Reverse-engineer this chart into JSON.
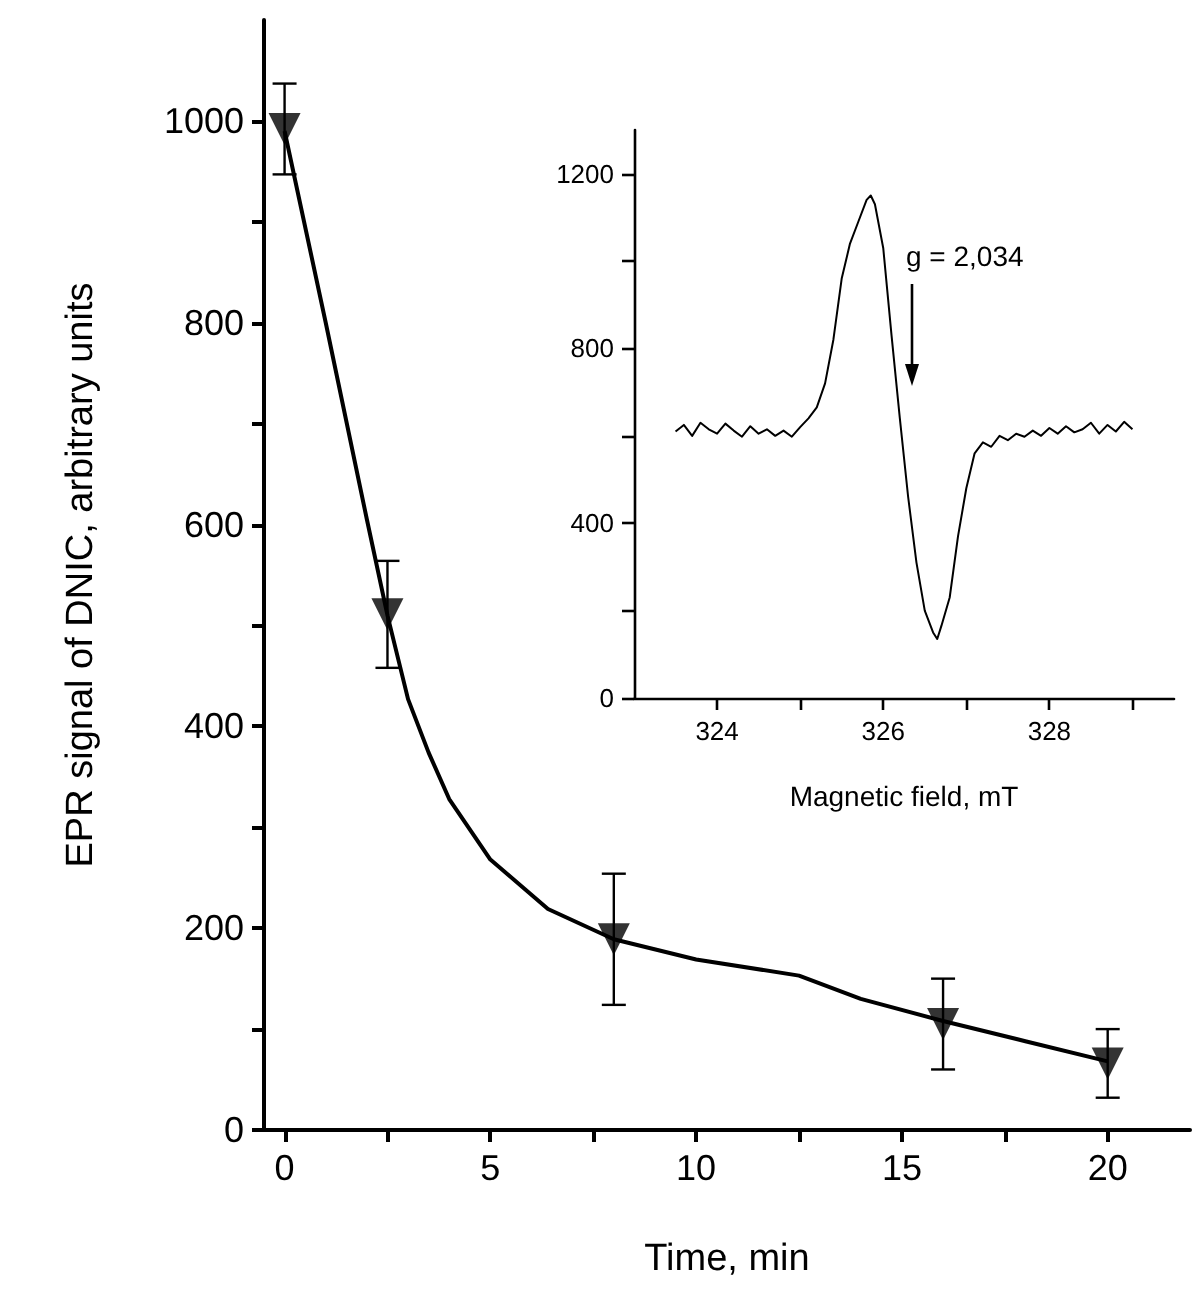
{
  "chart_data": [
    {
      "type": "scatter",
      "xlabel": "Time, min",
      "ylabel": "EPR signal of DNIC, arbitrary units",
      "xlim": [
        -0.5,
        22
      ],
      "ylim": [
        0,
        1100
      ],
      "xticks": [
        0,
        {
          "value": 2.5,
          "label": null
        },
        5,
        {
          "value": 7.5,
          "label": null
        },
        10,
        {
          "value": 12.5,
          "label": null
        },
        15,
        {
          "value": 17.5,
          "label": null
        },
        20
      ],
      "yticks": [
        0,
        {
          "value": 100,
          "label": null
        },
        200,
        {
          "value": 300,
          "label": null
        },
        400,
        {
          "value": 500,
          "label": null
        },
        600,
        {
          "value": 700,
          "label": null
        },
        800,
        {
          "value": 900,
          "label": null
        },
        1000
      ],
      "series": [
        {
          "color": "#000000",
          "marker": "triangle",
          "x": [
            0,
            2.5,
            8,
            16,
            20
          ],
          "values": [
            992,
            511,
            189,
            105,
            66
          ],
          "errors": [
            45,
            53,
            65,
            45,
            34
          ]
        },
        {
          "type": "line",
          "color": "#000000",
          "marker": "none",
          "x": [
            0,
            1,
            2,
            2.5,
            3,
            3.5,
            4,
            5,
            6.4,
            8,
            10,
            12.5,
            14,
            16,
            18,
            20
          ],
          "values": [
            990,
            800,
            605,
            510,
            427,
            374,
            328,
            268,
            219,
            189,
            169,
            153,
            130,
            108,
            88,
            68
          ]
        }
      ]
    },
    {
      "type": "line",
      "xlabel": "Magnetic field, mT",
      "xlim": [
        323,
        329.5
      ],
      "ylim": [
        0,
        1300
      ],
      "xticks": [
        324,
        {
          "value": 325,
          "label": null
        },
        326,
        {
          "value": 327,
          "label": null
        },
        328,
        {
          "value": 329,
          "label": null
        }
      ],
      "yticks": [
        0,
        {
          "value": 200,
          "label": null
        },
        400,
        {
          "value": 600,
          "label": null
        },
        800,
        {
          "value": 1000,
          "label": null
        },
        1200
      ],
      "annotations": [
        "g = 2,034"
      ],
      "series": [
        {
          "color": "#000000",
          "marker": "none",
          "x": [
            323.5,
            323.6,
            323.7,
            323.8,
            323.9,
            324.0,
            324.1,
            324.2,
            324.3,
            324.4,
            324.5,
            324.6,
            324.7,
            324.8,
            324.9,
            325.0,
            325.1,
            325.2,
            325.3,
            325.4,
            325.5,
            325.6,
            325.7,
            325.8,
            325.85,
            325.9,
            326.0,
            326.1,
            326.2,
            326.3,
            326.4,
            326.5,
            326.6,
            326.65,
            326.7,
            326.8,
            326.9,
            327.0,
            327.1,
            327.2,
            327.3,
            327.4,
            327.5,
            327.6,
            327.7,
            327.8,
            327.9,
            328.0,
            328.1,
            328.2,
            328.3,
            328.4,
            328.5,
            328.6,
            328.7,
            328.8,
            328.9,
            329.0
          ],
          "values": [
            610,
            625,
            600,
            630,
            615,
            605,
            628,
            612,
            598,
            622,
            605,
            615,
            600,
            612,
            598,
            620,
            640,
            665,
            720,
            820,
            960,
            1040,
            1090,
            1140,
            1150,
            1130,
            1030,
            830,
            640,
            460,
            310,
            200,
            150,
            135,
            165,
            230,
            370,
            480,
            560,
            585,
            575,
            600,
            590,
            605,
            598,
            612,
            600,
            618,
            605,
            622,
            608,
            615,
            630,
            605,
            625,
            610,
            632,
            615
          ]
        }
      ]
    }
  ]
}
